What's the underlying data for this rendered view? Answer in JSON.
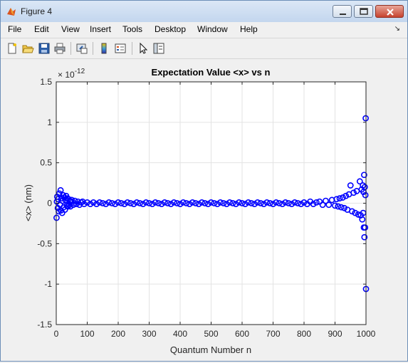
{
  "window": {
    "title": "Figure 4"
  },
  "menu": {
    "items": [
      "File",
      "Edit",
      "View",
      "Insert",
      "Tools",
      "Desktop",
      "Window",
      "Help"
    ]
  },
  "toolbar": {
    "icons": [
      "new-figure-icon",
      "open-file-icon",
      "save-icon",
      "print-icon",
      "link-icon",
      "colorbar-icon",
      "legend-icon",
      "pointer-icon",
      "property-editor-icon"
    ]
  },
  "chart_data": {
    "type": "scatter",
    "title": "Expectation Value <x> vs n",
    "xlabel": "Quantum Number n",
    "ylabel": "<x> (nm)",
    "exponent_label": "× 10",
    "exponent_power": "-12",
    "xlim": [
      0,
      1000
    ],
    "ylim": [
      -1.5,
      1.5
    ],
    "xticks": [
      0,
      100,
      200,
      300,
      400,
      500,
      600,
      700,
      800,
      900,
      1000
    ],
    "yticks": [
      -1.5,
      -1,
      -0.5,
      0,
      0.5,
      1,
      1.5
    ],
    "ytick_labels": [
      "-1.5",
      "-1",
      "-0.5",
      "0",
      "0.5",
      "1",
      "1.5"
    ],
    "grid": true,
    "marker": "open-circle",
    "color": "#0000ff",
    "scale_factor": 1e-12,
    "points": [
      [
        1,
        -0.18
      ],
      [
        2,
        0.02
      ],
      [
        3,
        0.08
      ],
      [
        5,
        -0.06
      ],
      [
        6,
        0.05
      ],
      [
        8,
        -0.1
      ],
      [
        10,
        0.12
      ],
      [
        12,
        -0.02
      ],
      [
        14,
        0.16
      ],
      [
        15,
        -0.09
      ],
      [
        17,
        0.06
      ],
      [
        19,
        -0.12
      ],
      [
        20,
        0.03
      ],
      [
        22,
        0.1
      ],
      [
        24,
        -0.05
      ],
      [
        26,
        0.07
      ],
      [
        28,
        -0.08
      ],
      [
        30,
        0.04
      ],
      [
        32,
        0.09
      ],
      [
        34,
        -0.03
      ],
      [
        36,
        0.06
      ],
      [
        38,
        -0.04
      ],
      [
        40,
        0.05
      ],
      [
        42,
        -0.02
      ],
      [
        44,
        0.03
      ],
      [
        46,
        -0.04
      ],
      [
        48,
        0.02
      ],
      [
        50,
        0.04
      ],
      [
        55,
        -0.02
      ],
      [
        60,
        0.03
      ],
      [
        65,
        -0.01
      ],
      [
        70,
        0.02
      ],
      [
        75,
        -0.02
      ],
      [
        80,
        0.01
      ],
      [
        85,
        0.02
      ],
      [
        90,
        -0.01
      ],
      [
        100,
        0.01
      ],
      [
        110,
        -0.01
      ],
      [
        120,
        0.01
      ],
      [
        130,
        -0.01
      ],
      [
        140,
        0.01
      ],
      [
        150,
        0.0
      ],
      [
        160,
        -0.01
      ],
      [
        170,
        0.01
      ],
      [
        180,
        0.0
      ],
      [
        190,
        -0.01
      ],
      [
        200,
        0.01
      ],
      [
        210,
        0.0
      ],
      [
        220,
        -0.01
      ],
      [
        230,
        0.01
      ],
      [
        240,
        0.0
      ],
      [
        250,
        -0.01
      ],
      [
        260,
        0.01
      ],
      [
        270,
        0.0
      ],
      [
        280,
        -0.01
      ],
      [
        290,
        0.01
      ],
      [
        300,
        0.0
      ],
      [
        310,
        -0.01
      ],
      [
        320,
        0.01
      ],
      [
        330,
        0.0
      ],
      [
        340,
        -0.01
      ],
      [
        350,
        0.01
      ],
      [
        360,
        0.0
      ],
      [
        370,
        -0.01
      ],
      [
        380,
        0.01
      ],
      [
        390,
        0.0
      ],
      [
        400,
        -0.01
      ],
      [
        410,
        0.01
      ],
      [
        420,
        0.0
      ],
      [
        430,
        -0.01
      ],
      [
        440,
        0.01
      ],
      [
        450,
        0.0
      ],
      [
        460,
        -0.01
      ],
      [
        470,
        0.01
      ],
      [
        480,
        0.0
      ],
      [
        490,
        -0.01
      ],
      [
        500,
        0.01
      ],
      [
        510,
        0.0
      ],
      [
        520,
        -0.01
      ],
      [
        530,
        0.01
      ],
      [
        540,
        0.0
      ],
      [
        550,
        -0.01
      ],
      [
        560,
        0.01
      ],
      [
        570,
        0.0
      ],
      [
        580,
        -0.01
      ],
      [
        590,
        0.01
      ],
      [
        600,
        0.0
      ],
      [
        610,
        -0.01
      ],
      [
        620,
        0.01
      ],
      [
        630,
        0.0
      ],
      [
        640,
        -0.01
      ],
      [
        650,
        0.01
      ],
      [
        660,
        0.0
      ],
      [
        670,
        -0.01
      ],
      [
        680,
        0.01
      ],
      [
        690,
        0.0
      ],
      [
        700,
        -0.01
      ],
      [
        710,
        0.01
      ],
      [
        720,
        0.0
      ],
      [
        730,
        -0.01
      ],
      [
        740,
        0.01
      ],
      [
        750,
        0.0
      ],
      [
        760,
        -0.01
      ],
      [
        770,
        0.01
      ],
      [
        780,
        0.0
      ],
      [
        790,
        -0.01
      ],
      [
        800,
        0.01
      ],
      [
        810,
        -0.01
      ],
      [
        820,
        0.02
      ],
      [
        830,
        -0.01
      ],
      [
        840,
        0.01
      ],
      [
        850,
        0.02
      ],
      [
        860,
        -0.02
      ],
      [
        870,
        0.03
      ],
      [
        880,
        -0.02
      ],
      [
        890,
        0.04
      ],
      [
        900,
        -0.03
      ],
      [
        905,
        0.05
      ],
      [
        910,
        -0.04
      ],
      [
        915,
        0.06
      ],
      [
        920,
        -0.05
      ],
      [
        925,
        0.07
      ],
      [
        930,
        -0.06
      ],
      [
        935,
        0.09
      ],
      [
        940,
        -0.08
      ],
      [
        945,
        0.11
      ],
      [
        950,
        0.22
      ],
      [
        955,
        -0.1
      ],
      [
        960,
        0.13
      ],
      [
        965,
        -0.12
      ],
      [
        970,
        0.15
      ],
      [
        975,
        -0.14
      ],
      [
        980,
        0.27
      ],
      [
        983,
        -0.15
      ],
      [
        986,
        0.17
      ],
      [
        988,
        -0.2
      ],
      [
        990,
        0.22
      ],
      [
        991,
        -0.12
      ],
      [
        992,
        0.14
      ],
      [
        993,
        -0.3
      ],
      [
        994,
        0.35
      ],
      [
        995,
        -0.42
      ],
      [
        996,
        0.2
      ],
      [
        997,
        -0.3
      ],
      [
        998,
        0.1
      ],
      [
        999,
        1.05
      ],
      [
        1000,
        -1.06
      ]
    ]
  }
}
